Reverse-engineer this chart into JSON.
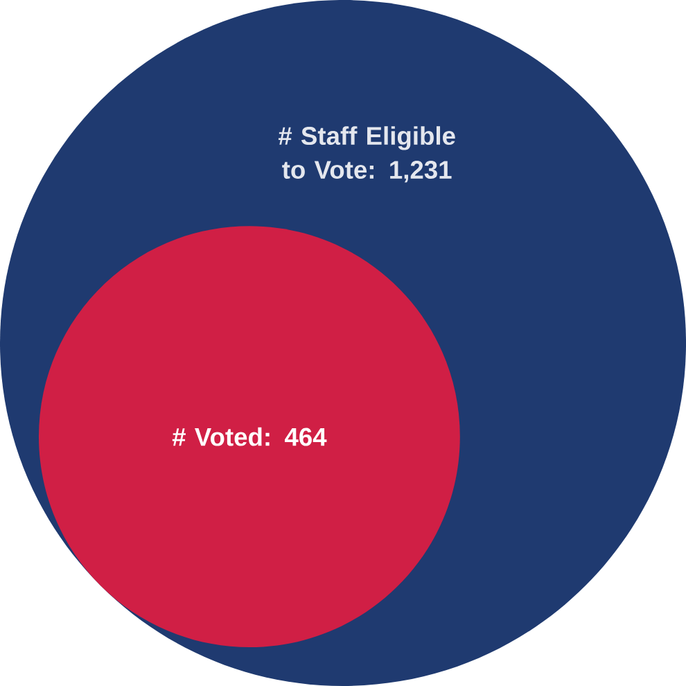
{
  "chart_data": {
    "type": "other",
    "categories": [
      "# Staff Eligible to Vote",
      "# Voted"
    ],
    "values": [
      1231,
      464
    ],
    "value_labels": [
      ": 1,231",
      ": 464"
    ],
    "colors": [
      "#1f3a70",
      "#d01f45"
    ]
  }
}
